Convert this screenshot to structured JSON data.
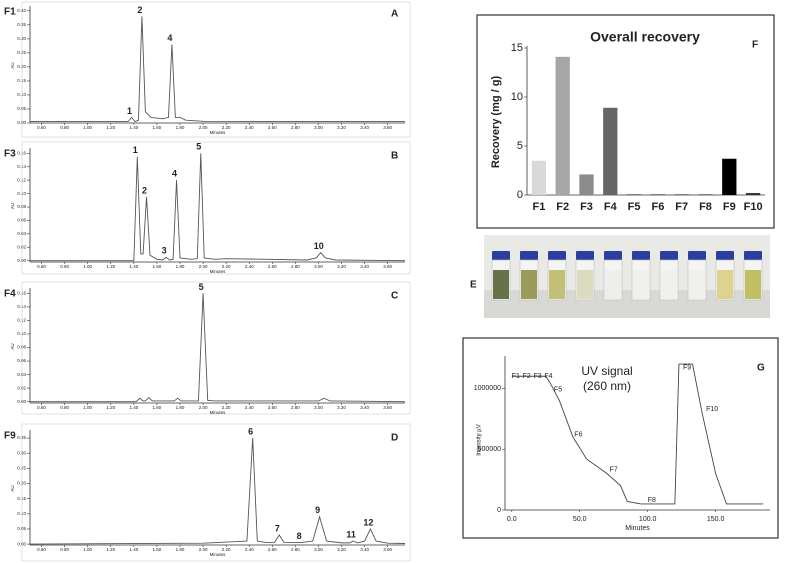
{
  "chart_data": [
    {
      "type": "chromatogram",
      "name": "F1",
      "panel": "A",
      "x_label": "Minutes",
      "y_label": "AU",
      "color": "#555555",
      "x": [
        0.5,
        1.35,
        1.38,
        1.41,
        1.44,
        1.47,
        1.5,
        1.55,
        1.65,
        1.7,
        1.73,
        1.76,
        1.8,
        1.85,
        2.0,
        3.75
      ],
      "values": [
        0.005,
        0.005,
        0.02,
        0.005,
        0.01,
        0.38,
        0.04,
        0.02,
        0.015,
        0.02,
        0.28,
        0.02,
        0.02,
        0.01,
        0.006,
        0.005
      ],
      "annotations": [
        {
          "text": "1",
          "x": 1.38,
          "y": 0.02
        },
        {
          "text": "2",
          "x": 1.47,
          "y": 0.38
        },
        {
          "text": "4",
          "x": 1.73,
          "y": 0.28
        }
      ],
      "xlim": [
        0.5,
        3.75
      ],
      "ylim": [
        0,
        0.41
      ],
      "xticks": [
        {
          "value": 0.6,
          "label": "0.60"
        },
        {
          "value": 0.8,
          "label": "0.80"
        },
        {
          "value": 1.0,
          "label": "1.00"
        },
        {
          "value": 1.2,
          "label": "1.20"
        },
        {
          "value": 1.4,
          "label": "1.40"
        },
        {
          "value": 1.6,
          "label": "1.60"
        },
        {
          "value": 1.8,
          "label": "1.80"
        },
        {
          "value": 2.0,
          "label": "2.00"
        },
        {
          "value": 2.2,
          "label": "2.20"
        },
        {
          "value": 2.4,
          "label": "2.40"
        },
        {
          "value": 2.6,
          "label": "2.60"
        },
        {
          "value": 2.8,
          "label": "2.80"
        },
        {
          "value": 3.0,
          "label": "3.00"
        },
        {
          "value": 3.2,
          "label": "3.20"
        },
        {
          "value": 3.4,
          "label": "3.40"
        },
        {
          "value": 3.6,
          "label": "3.60"
        }
      ],
      "yticks": [
        {
          "value": 0,
          "label": "0.00"
        },
        {
          "value": 0.05,
          "label": "0.05"
        },
        {
          "value": 0.1,
          "label": "0.10"
        },
        {
          "value": 0.15,
          "label": "0.15"
        },
        {
          "value": 0.2,
          "label": "0.20"
        },
        {
          "value": 0.25,
          "label": "0.25"
        },
        {
          "value": 0.3,
          "label": "0.30"
        },
        {
          "value": 0.35,
          "label": "0.35"
        },
        {
          "value": 0.4,
          "label": "0.40"
        }
      ]
    },
    {
      "type": "chromatogram",
      "name": "F3",
      "panel": "B",
      "x_label": "Minutes",
      "y_label": "AU",
      "color": "#555555",
      "x": [
        0.5,
        1.4,
        1.43,
        1.46,
        1.48,
        1.51,
        1.54,
        1.6,
        1.65,
        1.68,
        1.71,
        1.74,
        1.77,
        1.8,
        1.9,
        1.95,
        1.98,
        2.01,
        2.1,
        2.2,
        2.9,
        2.98,
        3.02,
        3.06,
        3.15,
        3.75
      ],
      "values": [
        0.0,
        0.0,
        0.155,
        0.01,
        0.01,
        0.095,
        0.008,
        0.002,
        0.001,
        0.005,
        0.001,
        0.002,
        0.12,
        0.004,
        0.002,
        0.003,
        0.16,
        0.004,
        0.002,
        0.003,
        0.001,
        0.004,
        0.012,
        0.004,
        0.001,
        0.0
      ],
      "annotations": [
        {
          "text": "1",
          "x": 1.43,
          "y": 0.155
        },
        {
          "text": "2",
          "x": 1.51,
          "y": 0.095
        },
        {
          "text": "3",
          "x": 1.68,
          "y": 0.005
        },
        {
          "text": "4",
          "x": 1.77,
          "y": 0.12
        },
        {
          "text": "5",
          "x": 1.98,
          "y": 0.16
        },
        {
          "text": "10",
          "x": 3.02,
          "y": 0.012
        }
      ],
      "xlim": [
        0.5,
        3.75
      ],
      "ylim": [
        -0.002,
        0.165
      ],
      "xticks": [
        {
          "value": 0.6,
          "label": "0.60"
        },
        {
          "value": 0.8,
          "label": "0.80"
        },
        {
          "value": 1.0,
          "label": "1.00"
        },
        {
          "value": 1.2,
          "label": "1.20"
        },
        {
          "value": 1.4,
          "label": "1.40"
        },
        {
          "value": 1.6,
          "label": "1.60"
        },
        {
          "value": 1.8,
          "label": "1.80"
        },
        {
          "value": 2.0,
          "label": "2.00"
        },
        {
          "value": 2.2,
          "label": "2.20"
        },
        {
          "value": 2.4,
          "label": "2.40"
        },
        {
          "value": 2.6,
          "label": "2.60"
        },
        {
          "value": 2.8,
          "label": "2.80"
        },
        {
          "value": 3.0,
          "label": "3.00"
        },
        {
          "value": 3.2,
          "label": "3.20"
        },
        {
          "value": 3.4,
          "label": "3.40"
        },
        {
          "value": 3.6,
          "label": "3.60"
        }
      ],
      "yticks": [
        {
          "value": 0,
          "label": "0.00"
        },
        {
          "value": 0.02,
          "label": "0.02"
        },
        {
          "value": 0.04,
          "label": "0.04"
        },
        {
          "value": 0.06,
          "label": "0.06"
        },
        {
          "value": 0.08,
          "label": "0.08"
        },
        {
          "value": 0.1,
          "label": "0.10"
        },
        {
          "value": 0.12,
          "label": "0.12"
        },
        {
          "value": 0.14,
          "label": "0.14"
        },
        {
          "value": 0.16,
          "label": "0.16"
        }
      ]
    },
    {
      "type": "chromatogram",
      "name": "F4",
      "panel": "C",
      "x_label": "Minutes",
      "y_label": "AU",
      "color": "#555555",
      "x": [
        0.5,
        1.42,
        1.45,
        1.48,
        1.5,
        1.53,
        1.56,
        1.75,
        1.78,
        1.81,
        1.96,
        2.0,
        2.04,
        2.1,
        3.0,
        3.05,
        3.1,
        3.75
      ],
      "values": [
        0.0,
        0.0,
        0.005,
        0.001,
        0.001,
        0.006,
        0.001,
        0.001,
        0.005,
        0.001,
        0.001,
        0.16,
        0.002,
        0.001,
        0.001,
        0.005,
        0.001,
        0.0
      ],
      "annotations": [
        {
          "text": "5",
          "x": 2.0,
          "y": 0.16
        }
      ],
      "xlim": [
        0.5,
        3.75
      ],
      "ylim": [
        -0.002,
        0.165
      ],
      "xticks": [
        {
          "value": 0.6,
          "label": "0.60"
        },
        {
          "value": 0.8,
          "label": "0.80"
        },
        {
          "value": 1.0,
          "label": "1.00"
        },
        {
          "value": 1.2,
          "label": "1.20"
        },
        {
          "value": 1.4,
          "label": "1.40"
        },
        {
          "value": 1.6,
          "label": "1.60"
        },
        {
          "value": 1.8,
          "label": "1.80"
        },
        {
          "value": 2.0,
          "label": "2.00"
        },
        {
          "value": 2.2,
          "label": "2.20"
        },
        {
          "value": 2.4,
          "label": "2.40"
        },
        {
          "value": 2.6,
          "label": "2.60"
        },
        {
          "value": 2.8,
          "label": "2.80"
        },
        {
          "value": 3.0,
          "label": "3.00"
        },
        {
          "value": 3.2,
          "label": "3.20"
        },
        {
          "value": 3.4,
          "label": "3.40"
        },
        {
          "value": 3.6,
          "label": "3.60"
        }
      ],
      "yticks": [
        {
          "value": 0,
          "label": "0.00"
        },
        {
          "value": 0.02,
          "label": "0.02"
        },
        {
          "value": 0.04,
          "label": "0.04"
        },
        {
          "value": 0.06,
          "label": "0.06"
        },
        {
          "value": 0.08,
          "label": "0.08"
        },
        {
          "value": 0.1,
          "label": "0.10"
        },
        {
          "value": 0.12,
          "label": "0.12"
        },
        {
          "value": 0.14,
          "label": "0.14"
        },
        {
          "value": 0.16,
          "label": "0.16"
        }
      ]
    },
    {
      "type": "chromatogram",
      "name": "F9",
      "panel": "D",
      "x_label": "Minutes",
      "y_label": "AU",
      "color": "#555555",
      "x": [
        0.5,
        2.0,
        2.38,
        2.43,
        2.47,
        2.55,
        2.62,
        2.66,
        2.7,
        2.85,
        2.95,
        3.01,
        3.07,
        3.2,
        3.27,
        3.3,
        3.34,
        3.4,
        3.45,
        3.5,
        3.6,
        3.75
      ],
      "values": [
        0.0,
        0.003,
        0.01,
        0.35,
        0.01,
        0.005,
        0.006,
        0.03,
        0.006,
        0.005,
        0.01,
        0.09,
        0.01,
        0.004,
        0.004,
        0.01,
        0.004,
        0.01,
        0.05,
        0.01,
        0.003,
        0.002
      ],
      "annotations": [
        {
          "text": "6",
          "x": 2.43,
          "y": 0.35
        },
        {
          "text": "7",
          "x": 2.66,
          "y": 0.03
        },
        {
          "text": "8",
          "x": 2.85,
          "y": 0.005
        },
        {
          "text": "9",
          "x": 3.01,
          "y": 0.09
        },
        {
          "text": "11",
          "x": 3.3,
          "y": 0.01
        },
        {
          "text": "12",
          "x": 3.45,
          "y": 0.05
        }
      ],
      "xlim": [
        0.5,
        3.75
      ],
      "ylim": [
        -0.003,
        0.37
      ],
      "xticks": [
        {
          "value": 0.6,
          "label": "0.60"
        },
        {
          "value": 0.8,
          "label": "0.80"
        },
        {
          "value": 1.0,
          "label": "1.00"
        },
        {
          "value": 1.2,
          "label": "1.20"
        },
        {
          "value": 1.4,
          "label": "1.40"
        },
        {
          "value": 1.6,
          "label": "1.60"
        },
        {
          "value": 1.8,
          "label": "1.80"
        },
        {
          "value": 2.0,
          "label": "2.00"
        },
        {
          "value": 2.2,
          "label": "2.20"
        },
        {
          "value": 2.4,
          "label": "2.40"
        },
        {
          "value": 2.6,
          "label": "2.60"
        },
        {
          "value": 2.8,
          "label": "2.80"
        },
        {
          "value": 3.0,
          "label": "3.00"
        },
        {
          "value": 3.2,
          "label": "3.20"
        },
        {
          "value": 3.4,
          "label": "3.40"
        },
        {
          "value": 3.6,
          "label": "3.60"
        }
      ],
      "yticks": [
        {
          "value": 0,
          "label": "0.00"
        },
        {
          "value": 0.05,
          "label": "0.05"
        },
        {
          "value": 0.1,
          "label": "0.10"
        },
        {
          "value": 0.15,
          "label": "0.15"
        },
        {
          "value": 0.2,
          "label": "0.20"
        },
        {
          "value": 0.25,
          "label": "0.25"
        },
        {
          "value": 0.3,
          "label": "0.30"
        },
        {
          "value": 0.35,
          "label": "0.35"
        }
      ]
    },
    {
      "type": "bar",
      "title": "Overall recovery",
      "panel": "F",
      "y_label": "Recovery (mg / g)",
      "categories": [
        "F1",
        "F2",
        "F3",
        "F4",
        "F5",
        "F6",
        "F7",
        "F8",
        "F9",
        "F10"
      ],
      "values": [
        3.5,
        14.1,
        2.1,
        8.9,
        0.1,
        0.1,
        0.1,
        0.1,
        3.7,
        0.2
      ],
      "colors": [
        "#d9d9d9",
        "#a6a6a6",
        "#8c8c8c",
        "#666666",
        "#7f7f7f",
        "#7f7f7f",
        "#7f7f7f",
        "#7f7f7f",
        "#000000",
        "#333333"
      ],
      "ylim": [
        0,
        15
      ],
      "yticks": [
        0,
        5,
        10,
        15
      ]
    },
    {
      "type": "line",
      "title": [
        "UV signal",
        "(260 nm)"
      ],
      "panel": "G",
      "x_label": "Minutes",
      "y_label": "Intensity µV",
      "color": "#444444",
      "x": [
        0,
        25,
        28,
        35,
        45,
        55,
        70,
        80,
        85,
        95,
        120,
        123,
        133,
        140,
        150,
        158,
        185
      ],
      "values": [
        1100000,
        1100000,
        1050000,
        900000,
        600000,
        420000,
        300000,
        200000,
        70000,
        50000,
        50000,
        1200000,
        1200000,
        800000,
        300000,
        50000,
        50000
      ],
      "annotations": [
        {
          "text": "F1",
          "x": 0,
          "y": 1100000
        },
        {
          "text": "F2",
          "x": 8,
          "y": 1100000
        },
        {
          "text": "F3",
          "x": 16,
          "y": 1100000
        },
        {
          "text": "F4",
          "x": 24,
          "y": 1100000
        },
        {
          "text": "F5",
          "x": 31,
          "y": 990000
        },
        {
          "text": "F6",
          "x": 46,
          "y": 620000
        },
        {
          "text": "F7",
          "x": 72,
          "y": 330000
        },
        {
          "text": "F8",
          "x": 100,
          "y": 80000
        },
        {
          "text": "F9",
          "x": 126,
          "y": 1170000
        },
        {
          "text": "F10",
          "x": 143,
          "y": 830000
        }
      ],
      "xlim": [
        -5,
        190
      ],
      "ylim": [
        0,
        1250000
      ],
      "xticks": [
        {
          "value": 0,
          "label": "0.0"
        },
        {
          "value": 50,
          "label": "50.0"
        },
        {
          "value": 100,
          "label": "100.0"
        },
        {
          "value": 150,
          "label": "150.0"
        }
      ],
      "yticks": [
        0,
        500000,
        1000000
      ]
    }
  ]
}
